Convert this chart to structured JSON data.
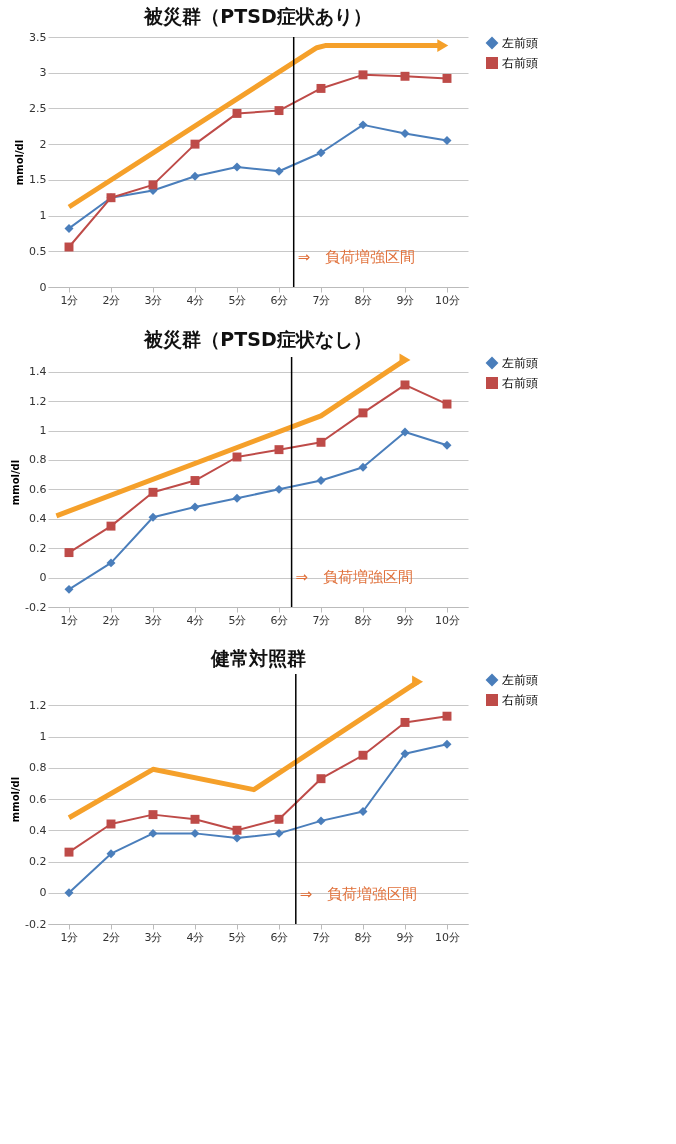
{
  "chart_data": [
    {
      "type": "line",
      "title": "被災群（PTSD症状あり）",
      "ylabel": "mmol/dl",
      "x": [
        1,
        2,
        3,
        4,
        5,
        6,
        7,
        8,
        9,
        10
      ],
      "xlim": [
        0.5,
        10.5
      ],
      "xticks": [
        {
          "value": 1,
          "label": "1分"
        },
        {
          "value": 2,
          "label": "2分"
        },
        {
          "value": 3,
          "label": "3分"
        },
        {
          "value": 4,
          "label": "4分"
        },
        {
          "value": 5,
          "label": "5分"
        },
        {
          "value": 6,
          "label": "6分"
        },
        {
          "value": 7,
          "label": "7分"
        },
        {
          "value": 8,
          "label": "8分"
        },
        {
          "value": 9,
          "label": "9分"
        },
        {
          "value": 10,
          "label": "10分"
        }
      ],
      "ylim": [
        0,
        3.5
      ],
      "yticks": [
        0,
        0.5,
        1,
        1.5,
        2,
        2.5,
        3,
        3.5
      ],
      "grid": "y",
      "legend": "right",
      "series": [
        {
          "name": "左前頭",
          "color": "#4a7ebb",
          "marker": "diamond",
          "values": [
            0.82,
            1.25,
            1.35,
            1.55,
            1.68,
            1.62,
            1.88,
            2.27,
            2.15,
            2.05
          ]
        },
        {
          "name": "右前頭",
          "color": "#be4b48",
          "marker": "square",
          "values": [
            0.56,
            1.25,
            1.43,
            2.0,
            2.43,
            2.47,
            2.78,
            2.97,
            2.95,
            2.92
          ]
        },
        {
          "type": "line",
          "color": "#f5a02a",
          "marker": "none",
          "x": [
            1,
            6.9,
            7.1,
            9.9
          ],
          "values": [
            1.12,
            3.35,
            3.38,
            3.38
          ]
        }
      ],
      "ref_lines": [
        {
          "axis": "x",
          "value": 6.35,
          "color": "#000000"
        }
      ],
      "annotations": [
        "⇒　負荷増強区間"
      ]
    },
    {
      "type": "line",
      "title": "被災群（PTSD症状なし）",
      "ylabel": "mmol/dl",
      "x": [
        1,
        2,
        3,
        4,
        5,
        6,
        7,
        8,
        9,
        10
      ],
      "xlim": [
        0.5,
        10.5
      ],
      "xticks": [
        {
          "value": 1,
          "label": "1分"
        },
        {
          "value": 2,
          "label": "2分"
        },
        {
          "value": 3,
          "label": "3分"
        },
        {
          "value": 4,
          "label": "4分"
        },
        {
          "value": 5,
          "label": "5分"
        },
        {
          "value": 6,
          "label": "6分"
        },
        {
          "value": 7,
          "label": "7分"
        },
        {
          "value": 8,
          "label": "8分"
        },
        {
          "value": 9,
          "label": "9分"
        },
        {
          "value": 10,
          "label": "10分"
        }
      ],
      "ylim": [
        -0.2,
        1.5
      ],
      "yticks": [
        -0.2,
        0,
        0.2,
        0.4,
        0.6,
        0.8,
        1,
        1.2,
        1.4
      ],
      "grid": "y",
      "legend": "right",
      "series": [
        {
          "name": "左前頭",
          "color": "#4a7ebb",
          "marker": "diamond",
          "values": [
            -0.08,
            0.1,
            0.41,
            0.48,
            0.54,
            0.6,
            0.66,
            0.75,
            0.99,
            0.9
          ]
        },
        {
          "name": "右前頭",
          "color": "#be4b48",
          "marker": "square",
          "values": [
            0.17,
            0.35,
            0.58,
            0.66,
            0.82,
            0.87,
            0.92,
            1.12,
            1.31,
            1.18
          ]
        },
        {
          "type": "line",
          "color": "#f5a02a",
          "marker": "none",
          "x": [
            0.7,
            7.0,
            9.0
          ],
          "values": [
            0.42,
            1.1,
            1.48
          ]
        }
      ],
      "ref_lines": [
        {
          "axis": "x",
          "value": 6.3,
          "color": "#000000"
        }
      ],
      "annotations": [
        "⇒　負荷増強区間"
      ]
    },
    {
      "type": "line",
      "title": "健常対照群",
      "ylabel": "mmol/dl",
      "x": [
        1,
        2,
        3,
        4,
        5,
        6,
        7,
        8,
        9,
        10
      ],
      "xlim": [
        0.5,
        10.5
      ],
      "xticks": [
        {
          "value": 1,
          "label": "1分"
        },
        {
          "value": 2,
          "label": "2分"
        },
        {
          "value": 3,
          "label": "3分"
        },
        {
          "value": 4,
          "label": "4分"
        },
        {
          "value": 5,
          "label": "5分"
        },
        {
          "value": 6,
          "label": "6分"
        },
        {
          "value": 7,
          "label": "7分"
        },
        {
          "value": 8,
          "label": "8分"
        },
        {
          "value": 9,
          "label": "9分"
        },
        {
          "value": 10,
          "label": "10分"
        }
      ],
      "ylim": [
        -0.2,
        1.4
      ],
      "yticks": [
        -0.2,
        0,
        0.2,
        0.4,
        0.6,
        0.8,
        1,
        1.2
      ],
      "grid": "y",
      "legend": "right",
      "series": [
        {
          "name": "左前頭",
          "color": "#4a7ebb",
          "marker": "diamond",
          "values": [
            0.0,
            0.25,
            0.38,
            0.38,
            0.35,
            0.38,
            0.46,
            0.52,
            0.89,
            0.95
          ]
        },
        {
          "name": "右前頭",
          "color": "#be4b48",
          "marker": "square",
          "values": [
            0.26,
            0.44,
            0.5,
            0.47,
            0.4,
            0.47,
            0.73,
            0.88,
            1.09,
            1.13
          ]
        },
        {
          "type": "line",
          "color": "#f5a02a",
          "marker": "none",
          "x": [
            1,
            3,
            5.4,
            9.3
          ],
          "values": [
            0.48,
            0.79,
            0.66,
            1.35
          ]
        }
      ],
      "ref_lines": [
        {
          "axis": "x",
          "value": 6.4,
          "color": "#000000"
        }
      ],
      "annotations": [
        "⇒　負荷増強区間"
      ]
    }
  ]
}
